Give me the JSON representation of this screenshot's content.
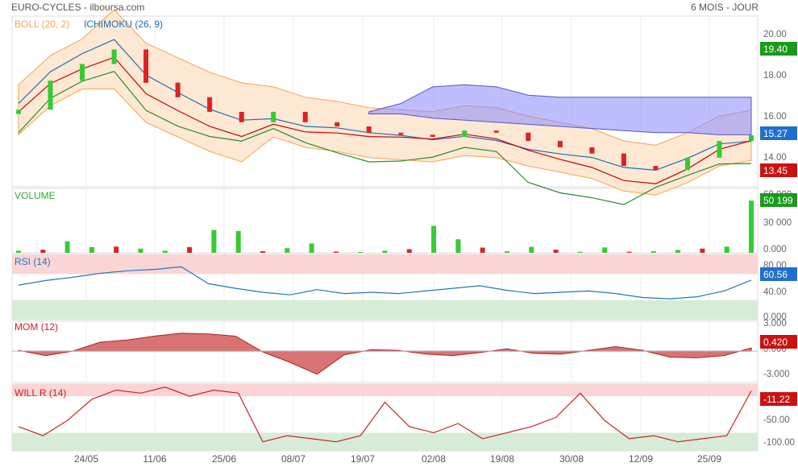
{
  "header": {
    "title": "EURO-CYCLES - ilboursa.com",
    "period": "6 MOIS - JOUR"
  },
  "colors": {
    "up": "#33cc33",
    "down": "#dd2222",
    "boll_fill": "#fde8d4",
    "boll_line": "#f5a64a",
    "cloud": "#8888ff",
    "kijun": "#cc0000",
    "tenkan": "#1f6fb4",
    "chikou": "#2e8b2e",
    "rsi_line": "#2277bb",
    "mom_fill": "#cc4444",
    "willr_line": "#cc2222",
    "overbought": "#fbd5d5",
    "oversold": "#d6ecd6",
    "badge_green": "#1a9a1a",
    "badge_blue": "#1f6fd0",
    "badge_red": "#cc1111"
  },
  "x_dates": [
    "24/05",
    "11/06",
    "25/06",
    "08/07",
    "19/07",
    "02/08",
    "19/08",
    "30/08",
    "12/09",
    "25/09"
  ],
  "price_panel": {
    "legend_boll": "BOLL (20, 2)",
    "legend_ichimoku": "ICHIMOKU (26, 9)",
    "y_ticks": [
      "20.00",
      "18.00",
      "16.00",
      "14.00"
    ],
    "badges": {
      "high": "19.40",
      "last": "15.27",
      "low": "13.45"
    }
  },
  "volume_panel": {
    "label": "VOLUME",
    "y_ticks": [
      "60 000",
      "30 000",
      "0.000"
    ],
    "badge": "50 199"
  },
  "rsi_panel": {
    "label": "RSI (14)",
    "y_ticks": [
      "80.00",
      "40.00",
      "0.000"
    ],
    "badge": "60.56"
  },
  "mom_panel": {
    "label": "MOM (12)",
    "y_ticks": [
      "3.000",
      "0.000",
      "-3.000"
    ],
    "badge": "0.420"
  },
  "willr_panel": {
    "label": "WILL R (14)",
    "y_ticks": [
      "-50.00",
      "-100.00"
    ],
    "badge": "-11.22"
  },
  "chart_data": {
    "type": "line",
    "title": "EURO-CYCLES - ilboursa.com",
    "x": [
      "24/05",
      "11/06",
      "25/06",
      "08/07",
      "19/07",
      "02/08",
      "19/08",
      "30/08",
      "12/09",
      "25/09"
    ],
    "price": {
      "close": [
        16.5,
        17.9,
        18.7,
        19.4,
        17.8,
        17.1,
        16.4,
        15.9,
        16.4,
        15.9,
        15.7,
        15.4,
        15.3,
        15.2,
        15.5,
        15.4,
        15.0,
        14.7,
        14.4,
        13.8,
        13.6,
        14.2,
        15.0,
        15.27
      ],
      "ylim": [
        12.8,
        21.0
      ],
      "last": 15.27,
      "high": 19.4,
      "low": 13.45
    },
    "volume": {
      "values": [
        2000,
        3000,
        11000,
        5500,
        6000,
        4000,
        2000,
        5500,
        22000,
        21000,
        1500,
        4500,
        9000,
        1200,
        800,
        2000,
        3500,
        26000,
        13000,
        5000,
        1500,
        5800,
        3000,
        1000,
        5200,
        1000,
        1500,
        2800,
        4000,
        6000,
        50199
      ],
      "ylim": [
        0,
        62000
      ]
    },
    "rsi": {
      "values": [
        53,
        60,
        65,
        71,
        75,
        77,
        81,
        55,
        48,
        42,
        38,
        46,
        40,
        42,
        40,
        44,
        48,
        52,
        45,
        40,
        42,
        44,
        40,
        34,
        32,
        35,
        44,
        60.56
      ],
      "ylim": [
        0,
        100
      ],
      "overbought": 70,
      "oversold": 30
    },
    "momentum": {
      "values": [
        0.1,
        -0.6,
        0.0,
        1.2,
        1.5,
        2.0,
        2.4,
        2.3,
        2.0,
        -0.1,
        -1.5,
        -3.1,
        -0.5,
        0.2,
        0.1,
        -0.4,
        -0.6,
        -0.2,
        0.3,
        -0.3,
        -0.4,
        0.1,
        0.6,
        0.1,
        -0.8,
        -0.9,
        -0.6,
        0.42
      ],
      "ylim": [
        -4.2,
        4.0
      ]
    },
    "williams_r": {
      "values": [
        -70,
        -85,
        -60,
        -25,
        -10,
        -15,
        -5,
        -20,
        -10,
        -15,
        -95,
        -85,
        -90,
        -95,
        -85,
        -30,
        -70,
        -80,
        -65,
        -90,
        -80,
        -70,
        -55,
        -15,
        -60,
        -90,
        -85,
        -95,
        -90,
        -85,
        -11.22
      ],
      "ylim": [
        -110,
        0
      ],
      "overbought": -20,
      "oversold": -80
    }
  }
}
